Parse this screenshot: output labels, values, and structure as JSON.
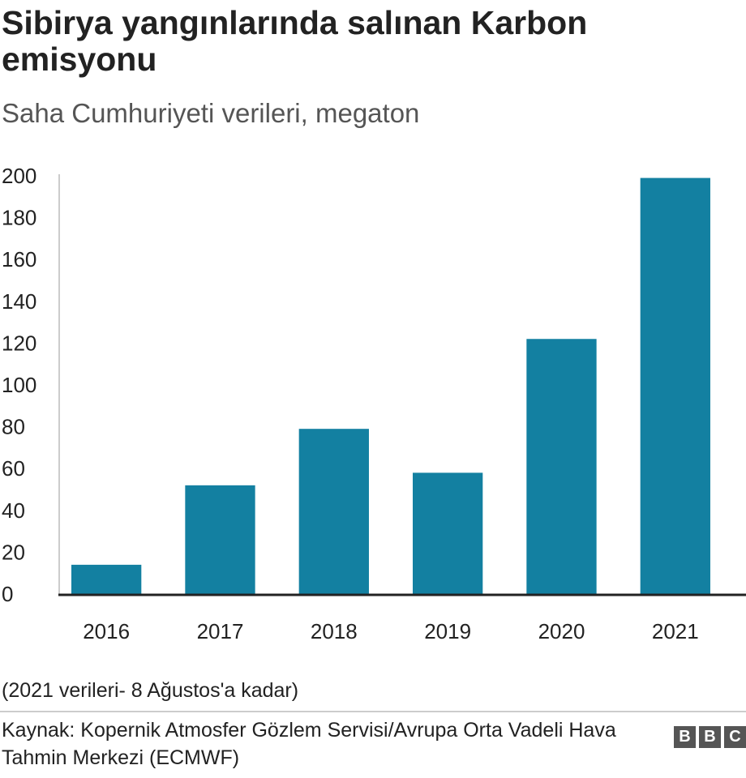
{
  "chart_data": {
    "type": "bar",
    "title": "Sibirya yangınlarında salınan Karbon emisyonu",
    "subtitle": "Saha Cumhuriyeti verileri, megaton",
    "categories": [
      "2016",
      "2017",
      "2018",
      "2019",
      "2020",
      "2021"
    ],
    "values": [
      14,
      52,
      79,
      58,
      122,
      199
    ],
    "ylim": [
      0,
      200
    ],
    "yticks": [
      0,
      20,
      40,
      60,
      80,
      100,
      120,
      140,
      160,
      180,
      200
    ],
    "xlabel": "",
    "ylabel": "",
    "grid": false,
    "bar_color": "#1380A1"
  },
  "footnote": "(2021 verileri- 8 Ağustos'a kadar)",
  "source": "Kaynak: Kopernik Atmosfer Gözlem Servisi/Avrupa Orta Vadeli Hava Tahmin Merkezi (ECMWF)",
  "logo": [
    "B",
    "B",
    "C"
  ]
}
